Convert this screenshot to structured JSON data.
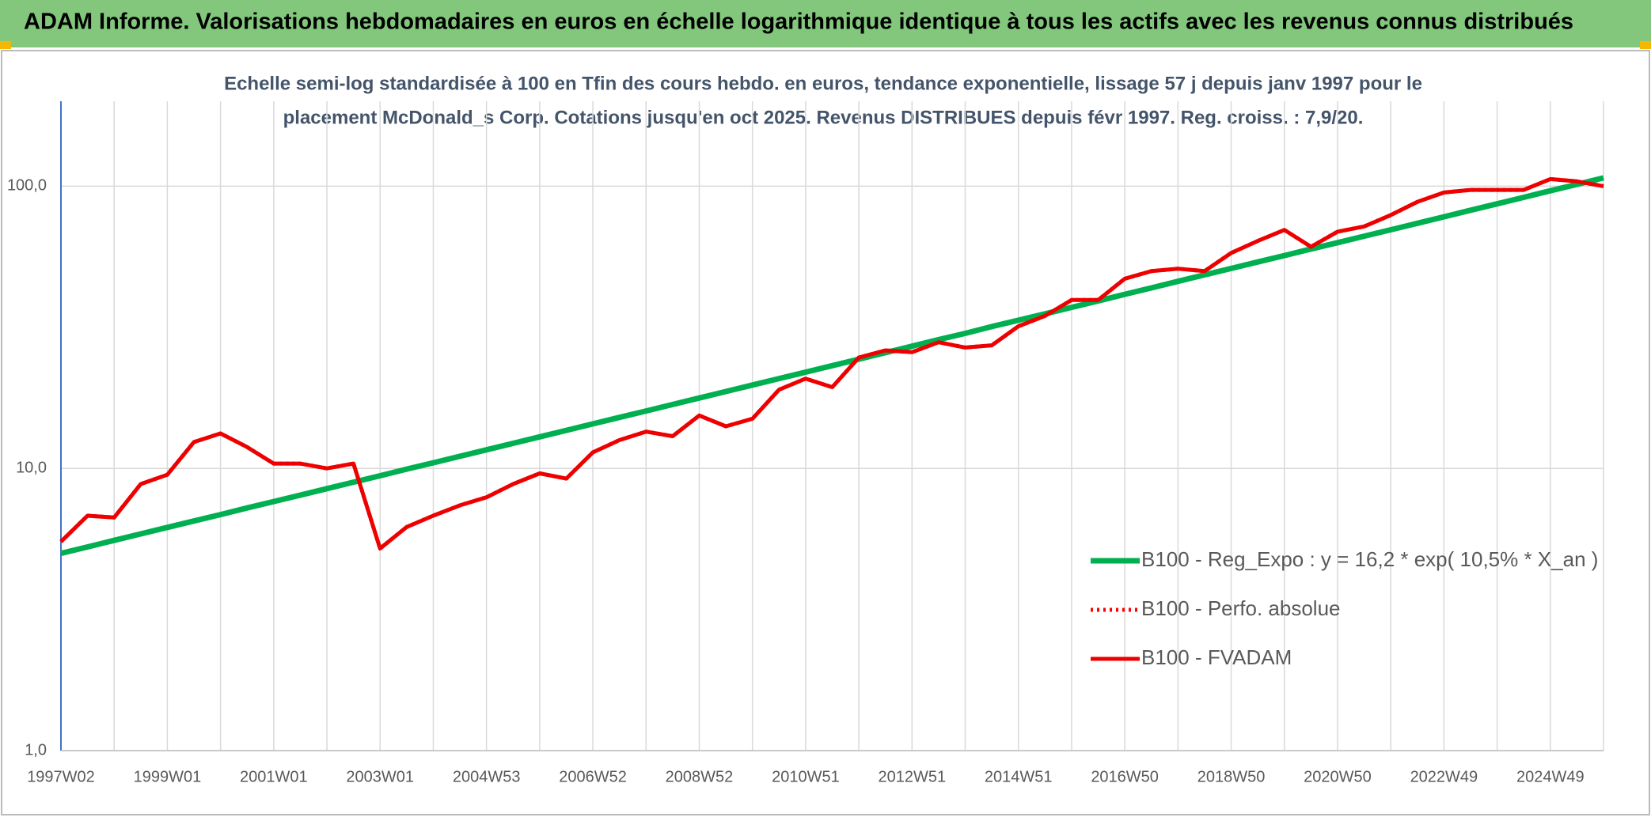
{
  "chart_data": {
    "type": "line",
    "title": "ADAM Informe. Valorisations hebdomadaires en euros en échelle logarithmique identique à tous les actifs avec les revenus connus distribués",
    "subtitle": [
      "Echelle semi-log standardisée à 100 en Tfin des cours hebdo. en euros, tendance exponentielle, lissage 57 j depuis janv 1997 pour le",
      "placement McDonald_s Corp. Cotations jusqu'en oct 2025. Revenus DISTRIBUES depuis févr 1997. Reg. croiss. : 7,9/20."
    ],
    "categories": [
      "1997W02",
      null,
      null,
      null,
      "1999W01",
      null,
      null,
      null,
      "2001W01",
      null,
      null,
      null,
      "2003W01",
      null,
      null,
      null,
      "2004W53",
      null,
      null,
      null,
      "2006W52",
      null,
      null,
      null,
      "2008W52",
      null,
      null,
      null,
      "2010W51",
      null,
      null,
      null,
      "2012W51",
      null,
      null,
      null,
      "2014W51",
      null,
      null,
      null,
      "2016W50",
      null,
      null,
      null,
      "2018W50",
      null,
      null,
      null,
      "2020W50",
      null,
      null,
      null,
      "2022W49",
      null,
      null,
      null,
      "2024W49",
      null,
      null
    ],
    "series": [
      {
        "name": "B100 - Reg_Expo : y = 16,2 * exp( 10,5% *  X_an )",
        "color": "#00b050",
        "style": "solid",
        "values": [
          5.0,
          5.27,
          5.56,
          5.86,
          6.18,
          6.51,
          6.86,
          7.24,
          7.63,
          8.04,
          8.48,
          8.94,
          9.42,
          9.94,
          10.47,
          11.04,
          11.64,
          12.27,
          12.94,
          13.64,
          14.38,
          15.16,
          15.98,
          16.85,
          17.76,
          18.72,
          19.74,
          20.81,
          21.94,
          23.13,
          24.38,
          25.7,
          27.1,
          28.6,
          30.1,
          31.8,
          33.5,
          35.3,
          37.2,
          39.2,
          41.4,
          43.6,
          46.0,
          48.5,
          51.1,
          53.9,
          56.8,
          59.9,
          63.1,
          66.5,
          70.1,
          73.9,
          77.9,
          82.2,
          86.6,
          91.3,
          96.3,
          101.5,
          107.0
        ]
      },
      {
        "name": "B100 - Perfo. absolue",
        "color": "#ff0000",
        "style": "dotted",
        "values": [
          5.5,
          6.8,
          6.7,
          8.8,
          9.5,
          12.4,
          13.3,
          11.9,
          10.4,
          10.4,
          10.0,
          10.4,
          5.2,
          6.2,
          6.8,
          7.4,
          7.9,
          8.8,
          9.6,
          9.2,
          11.4,
          12.6,
          13.5,
          13.0,
          15.4,
          14.1,
          15.0,
          19.0,
          20.8,
          19.4,
          24.7,
          26.2,
          25.8,
          28.0,
          26.8,
          27.3,
          31.9,
          34.7,
          39.5,
          39.5,
          47,
          50,
          51,
          50,
          58,
          64,
          70,
          61,
          69,
          72,
          79,
          88,
          95,
          97,
          97,
          97,
          106,
          104,
          100
        ]
      },
      {
        "name": "B100 - FVADAM",
        "color": "#ee0000",
        "style": "solid",
        "values": [
          5.5,
          6.8,
          6.7,
          8.8,
          9.5,
          12.4,
          13.3,
          11.9,
          10.4,
          10.4,
          10.0,
          10.4,
          5.2,
          6.2,
          6.8,
          7.4,
          7.9,
          8.8,
          9.6,
          9.2,
          11.4,
          12.6,
          13.5,
          13.0,
          15.4,
          14.1,
          15.0,
          19.0,
          20.8,
          19.4,
          24.7,
          26.2,
          25.8,
          28.0,
          26.8,
          27.3,
          31.9,
          34.7,
          39.5,
          39.5,
          47,
          50,
          51,
          50,
          58,
          64,
          70,
          61,
          69,
          72,
          79,
          88,
          95,
          97,
          97,
          97,
          106,
          104,
          100
        ]
      }
    ],
    "ylim": [
      1,
      200
    ],
    "yticks": [
      {
        "value": 1,
        "label": "1,0"
      },
      {
        "value": 10,
        "label": "10,0"
      },
      {
        "value": 100,
        "label": "100,0"
      }
    ],
    "log_scale": true,
    "grid": true,
    "legend_position": "lower right"
  }
}
